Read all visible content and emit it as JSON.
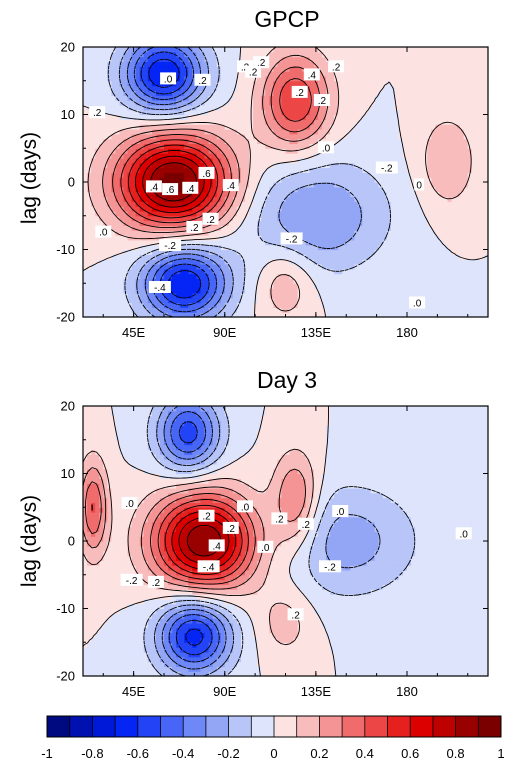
{
  "chart_data": [
    {
      "type": "heatmap",
      "title": "GPCP",
      "xlabel": "",
      "ylabel": "lag (days)",
      "xlim": [
        20,
        220
      ],
      "ylim": [
        -20,
        20
      ],
      "xticks": [
        "45E",
        "90E",
        "135E",
        "180"
      ],
      "xtick_values": [
        45,
        90,
        135,
        180
      ],
      "yticks": [
        "-20",
        "-10",
        "0",
        "10",
        "20"
      ],
      "ytick_values": [
        -20,
        -10,
        0,
        10,
        20
      ],
      "contour_labels": [
        {
          "text": ".2",
          "x": 27,
          "y": 10.2
        },
        {
          "text": ".2",
          "x": 100,
          "y": 17
        },
        {
          "text": ".2",
          "x": 108,
          "y": 17.6
        },
        {
          "text": ".0",
          "x": 62,
          "y": 15.2
        },
        {
          "text": ".2",
          "x": 79,
          "y": 15.0
        },
        {
          "text": ".2",
          "x": 104,
          "y": 16.2
        },
        {
          "text": ".4",
          "x": 55,
          "y": -0.8
        },
        {
          "text": ".6",
          "x": 63,
          "y": -1.2
        },
        {
          "text": ".4",
          "x": 73,
          "y": -1.0
        },
        {
          "text": ".6",
          "x": 81,
          "y": 1.2
        },
        {
          "text": ".4",
          "x": 93,
          "y": -0.6
        },
        {
          "text": ".2",
          "x": 83,
          "y": -5.6
        },
        {
          "text": ".2",
          "x": 75,
          "y": -6.8
        },
        {
          "text": ".0",
          "x": 30,
          "y": -7.5
        },
        {
          "text": "-.2",
          "x": 63,
          "y": -9.5
        },
        {
          "text": "-.4",
          "x": 58,
          "y": -15.7
        },
        {
          "text": ".2",
          "x": 145,
          "y": 17.0
        },
        {
          "text": ".2",
          "x": 127,
          "y": 13.2
        },
        {
          "text": ".4",
          "x": 133,
          "y": 15.8
        },
        {
          "text": ".2",
          "x": 138,
          "y": 12.0
        },
        {
          "text": ".0",
          "x": 140,
          "y": 5.0
        },
        {
          "text": "-.2",
          "x": 170,
          "y": 2.0
        },
        {
          "text": "-.2",
          "x": 123,
          "y": -8.5
        },
        {
          "text": "0",
          "x": 186,
          "y": -0.5
        },
        {
          "text": ".0",
          "x": 185,
          "y": -18.0
        }
      ],
      "features": [
        {
          "x": 65,
          "lag": 0,
          "sx": 20,
          "sy": 5,
          "amp": 0.95
        },
        {
          "x": 70,
          "lag": -15,
          "sx": 15,
          "sy": 4,
          "amp": -0.7
        },
        {
          "x": 60,
          "lag": 16,
          "sx": 14,
          "sy": 4,
          "amp": -0.7
        },
        {
          "x": 125,
          "lag": 12,
          "sx": 12,
          "sy": 5,
          "amp": 0.5
        },
        {
          "x": 135,
          "lag": -5,
          "sx": 25,
          "sy": 6,
          "amp": -0.3
        },
        {
          "x": 120,
          "lag": -15,
          "sx": 10,
          "sy": 4,
          "amp": 0.2
        },
        {
          "x": 200,
          "lag": 3,
          "sx": 10,
          "sy": 5,
          "amp": 0.2
        }
      ]
    },
    {
      "type": "heatmap",
      "title": "Day 3",
      "xlabel": "",
      "ylabel": "lag (days)",
      "xlim": [
        20,
        220
      ],
      "ylim": [
        -20,
        20
      ],
      "xticks": [
        "45E",
        "90E",
        "135E",
        "180"
      ],
      "xtick_values": [
        45,
        90,
        135,
        180
      ],
      "yticks": [
        "-20",
        "-10",
        "0",
        "10",
        "20"
      ],
      "ytick_values": [
        -20,
        -10,
        0,
        10,
        20
      ],
      "contour_labels": [
        {
          "text": ".0",
          "x": 43,
          "y": 5.5
        },
        {
          "text": ".2",
          "x": 81,
          "y": 3.6
        },
        {
          "text": ".2",
          "x": 93,
          "y": 1.8
        },
        {
          "text": ".4",
          "x": 86,
          "y": -0.8
        },
        {
          "text": "-.4",
          "x": 82,
          "y": -3.9
        },
        {
          "text": ".2",
          "x": 56,
          "y": -6.2
        },
        {
          "text": "-.2",
          "x": 44,
          "y": -5.9
        },
        {
          "text": ".0",
          "x": 100,
          "y": 5.0
        },
        {
          "text": ".2",
          "x": 130,
          "y": 2.4
        },
        {
          "text": ".2",
          "x": 117,
          "y": 3.2
        },
        {
          "text": ".0",
          "x": 147,
          "y": 4.3
        },
        {
          "text": ".0",
          "x": 110,
          "y": -1.0
        },
        {
          "text": "-.2",
          "x": 142,
          "y": -3.9
        },
        {
          "text": ".2",
          "x": 125,
          "y": -11.0
        },
        {
          "text": ".0",
          "x": 208,
          "y": 1.0
        }
      ],
      "features": [
        {
          "x": 80,
          "lag": 0,
          "sx": 18,
          "sy": 5,
          "amp": 0.9
        },
        {
          "x": 75,
          "lag": -14,
          "sx": 13,
          "sy": 4,
          "amp": -0.65
        },
        {
          "x": 72,
          "lag": 16,
          "sx": 11,
          "sy": 4,
          "amp": -0.55
        },
        {
          "x": 25,
          "lag": 5,
          "sx": 5,
          "sy": 5,
          "amp": 0.4
        },
        {
          "x": 125,
          "lag": 6,
          "sx": 8,
          "sy": 5,
          "amp": 0.35
        },
        {
          "x": 150,
          "lag": 0,
          "sx": 25,
          "sy": 6,
          "amp": -0.25
        },
        {
          "x": 120,
          "lag": -12,
          "sx": 10,
          "sy": 4,
          "amp": 0.15
        }
      ]
    }
  ],
  "colorbar": {
    "ticks": [
      "-1",
      "-0.8",
      "-0.6",
      "-0.4",
      "-0.2",
      "0",
      "0.2",
      "0.4",
      "0.6",
      "0.8",
      "1"
    ],
    "levels": [
      -1,
      -0.9,
      -0.8,
      -0.7,
      -0.6,
      -0.5,
      -0.4,
      -0.3,
      -0.2,
      -0.1,
      0,
      0.1,
      0.2,
      0.3,
      0.4,
      0.5,
      0.6,
      0.7,
      0.8,
      0.9,
      1
    ],
    "colors": [
      "#000a80",
      "#0011b0",
      "#0018d8",
      "#0525f5",
      "#2244f6",
      "#4766f7",
      "#6e88f7",
      "#93a6f6",
      "#b8c5f8",
      "#dde4fb",
      "#fde2e2",
      "#f8bcbc",
      "#f49494",
      "#f06c6c",
      "#ec4646",
      "#e61f1f",
      "#dc0000",
      "#bd0000",
      "#990000",
      "#7a0000"
    ]
  }
}
